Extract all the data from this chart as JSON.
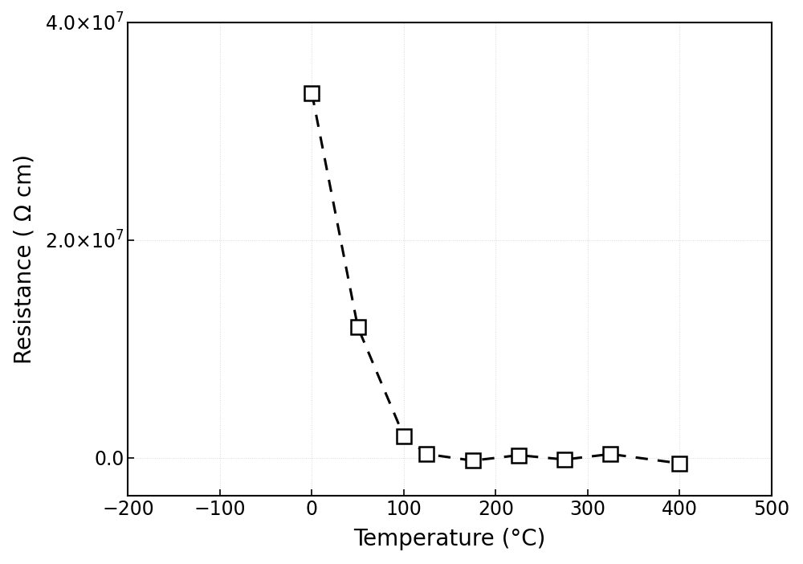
{
  "x": [
    0,
    50,
    100,
    125,
    175,
    225,
    275,
    325,
    400
  ],
  "y": [
    33500000.0,
    12000000.0,
    2000000.0,
    350000.0,
    -250000.0,
    250000.0,
    -150000.0,
    350000.0,
    -500000.0
  ],
  "xlabel": "Temperature (°C)",
  "ylabel": "Resistance ( Ω cm)",
  "xlim": [
    -200,
    500
  ],
  "ylim": [
    -3500000.0,
    40000000.0
  ],
  "xticks": [
    -200,
    -100,
    0,
    100,
    200,
    300,
    400,
    500
  ],
  "yticks": [
    0.0,
    20000000.0,
    40000000.0
  ],
  "line_color": "#000000",
  "marker_facecolor": "#ffffff",
  "marker_edgecolor": "#000000",
  "fig_background": "#ffffff",
  "ax_background": "#ffffff",
  "marker_size": 13,
  "line_width": 2.2,
  "label_fontsize": 20,
  "tick_fontsize": 17,
  "grid_color": "#d0d0d0",
  "grid_linestyle": ":",
  "grid_alpha": 0.8
}
